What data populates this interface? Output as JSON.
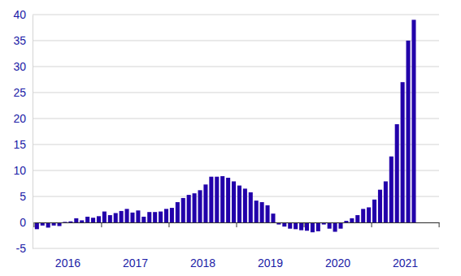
{
  "chart_data": {
    "type": "bar",
    "categories": [
      null,
      null,
      null,
      null,
      null,
      null,
      "2016",
      null,
      null,
      null,
      null,
      null,
      null,
      null,
      null,
      null,
      null,
      null,
      "2017",
      null,
      null,
      null,
      null,
      null,
      null,
      null,
      null,
      null,
      null,
      null,
      "2018",
      null,
      null,
      null,
      null,
      null,
      null,
      null,
      null,
      null,
      null,
      null,
      "2019",
      null,
      null,
      null,
      null,
      null,
      null,
      null,
      null,
      null,
      null,
      null,
      "2020",
      null,
      null,
      null,
      null,
      null,
      null,
      null,
      null,
      null,
      null,
      null,
      "2021",
      null,
      null,
      null,
      null,
      null
    ],
    "values": [
      -1.3,
      -0.6,
      -1.0,
      -0.6,
      -0.7,
      0.1,
      0.2,
      0.8,
      0.4,
      1.1,
      0.9,
      1.2,
      2.1,
      1.4,
      1.8,
      2.2,
      2.6,
      1.9,
      2.3,
      1.1,
      2.0,
      2.0,
      2.1,
      2.6,
      2.8,
      3.9,
      4.7,
      5.3,
      5.6,
      6.2,
      7.3,
      8.8,
      8.8,
      8.9,
      8.6,
      7.9,
      7.1,
      6.5,
      5.8,
      4.2,
      3.9,
      3.3,
      1.7,
      -0.4,
      -0.8,
      -1.2,
      -1.3,
      -1.5,
      -1.6,
      -1.9,
      -1.7,
      -0.4,
      -1.2,
      -1.8,
      -1.2,
      0.3,
      0.8,
      1.4,
      2.6,
      2.9,
      4.4,
      6.3,
      7.9,
      12.7,
      18.9,
      27.0,
      35.0,
      39.0,
      null,
      null,
      null,
      null
    ],
    "color": "#2200aa",
    "ylim": [
      -5,
      40
    ],
    "yticks": [
      -5,
      0,
      5,
      10,
      15,
      20,
      25,
      30,
      35,
      40
    ],
    "grid": true
  }
}
